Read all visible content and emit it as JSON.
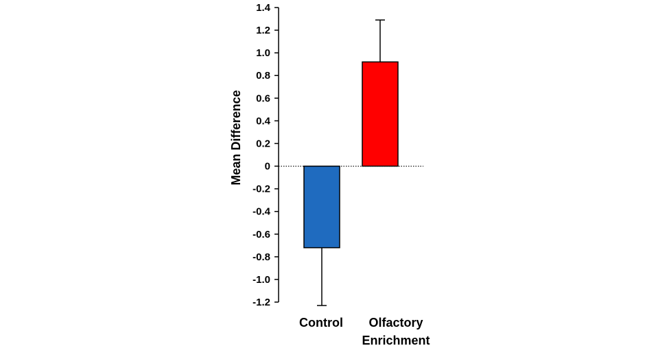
{
  "chart_data": {
    "type": "bar",
    "title": "",
    "xlabel": "",
    "ylabel": "Mean Difference",
    "ylim": [
      -1.2,
      1.4
    ],
    "yticks": [
      1.4,
      1.2,
      1.0,
      0.8,
      0.6,
      0.4,
      0.2,
      0,
      -0.2,
      -0.4,
      -0.6,
      -0.8,
      -1.0,
      -1.2
    ],
    "ytick_labels": [
      "1.4",
      "1.2",
      "1.0",
      "0.8",
      "0.6",
      "0.4",
      "0.2",
      "0",
      "-0.2",
      "-0.4",
      "-0.6",
      "-0.8",
      "-1.0",
      "-1.2"
    ],
    "grid": false,
    "zero_line": "dotted",
    "bars": [
      {
        "category": [
          "Control"
        ],
        "value": -0.72,
        "error": 0.51,
        "color": "#1f6bbf"
      },
      {
        "category": [
          "Olfactory",
          "Enrichment"
        ],
        "value": 0.92,
        "error": 0.37,
        "color": "#ff0000"
      }
    ]
  }
}
